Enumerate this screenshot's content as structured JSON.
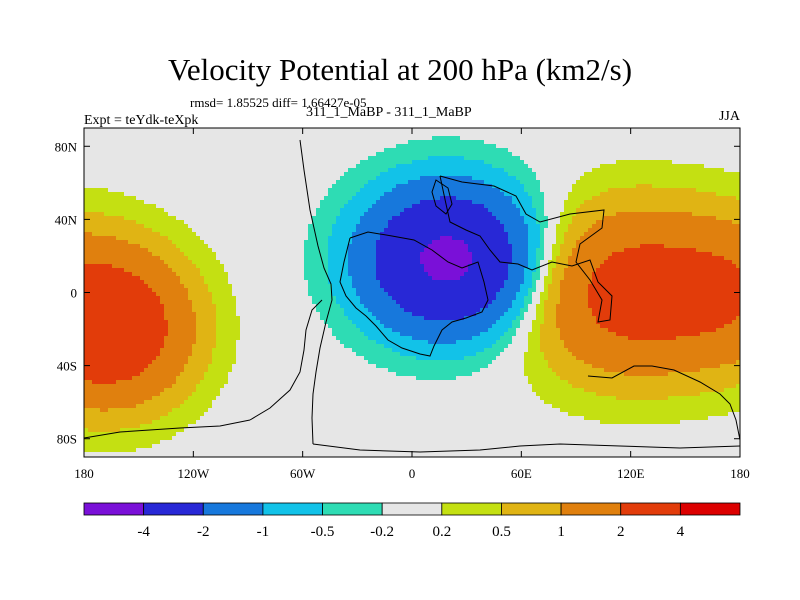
{
  "chart_data": {
    "type": "heatmap",
    "title": "Velocity Potential at 200 hPa (km2/s)",
    "stats": "rmsd= 1.85525 diff= 1.66427e-05",
    "left_label": "Expt = teYdk-teXpk",
    "center_label": "311_1_MaBP - 311_1_MaBP",
    "right_label": "JJA",
    "xlim": [
      -180,
      180
    ],
    "ylim": [
      -90,
      90
    ],
    "x_ticks": [
      {
        "value": -180,
        "label": "180"
      },
      {
        "value": -120,
        "label": "120W"
      },
      {
        "value": -60,
        "label": "60W"
      },
      {
        "value": 0,
        "label": "0"
      },
      {
        "value": 60,
        "label": "60E"
      },
      {
        "value": 120,
        "label": "120E"
      },
      {
        "value": 180,
        "label": "180"
      }
    ],
    "y_ticks": [
      {
        "value": 80,
        "label": "80N"
      },
      {
        "value": 40,
        "label": "40N"
      },
      {
        "value": 0,
        "label": "0"
      },
      {
        "value": -40,
        "label": "40S"
      },
      {
        "value": -80,
        "label": "80S"
      }
    ],
    "levels": [
      "-4",
      "-2",
      "-1",
      "-0.5",
      "-0.2",
      "0.2",
      "0.5",
      "1",
      "2",
      "4"
    ],
    "colors": [
      "#7a10d8",
      "#2828d6",
      "#1778dc",
      "#12c2e8",
      "#2edcb4",
      "#e6e6e6",
      "#c4e012",
      "#e0b414",
      "#e0800e",
      "#e23c0a",
      "#dc0000"
    ],
    "field": {
      "description_units": "km2/s",
      "min_center": {
        "lon": 20,
        "lat": 18,
        "value": -4.5
      },
      "max_center_east": {
        "lon": 120,
        "lat": 0,
        "value": 2.6
      },
      "max_center_west": {
        "lon": -160,
        "lat": -20,
        "value": 2.6
      }
    }
  }
}
